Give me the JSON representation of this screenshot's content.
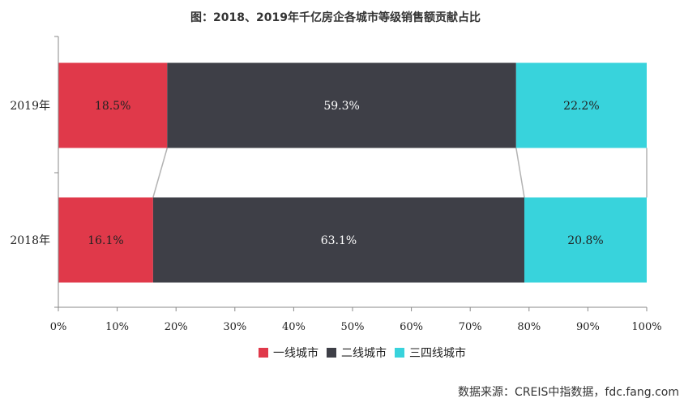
{
  "chart_data": {
    "type": "bar",
    "orientation": "horizontal",
    "stacked": "percent",
    "title": "图：2018、2019年千亿房企各城市等级销售额贡献占比",
    "categories": [
      "2019年",
      "2018年"
    ],
    "series": [
      {
        "name": "一线城市",
        "values": [
          18.5,
          16.1
        ],
        "labels": [
          "18.5%",
          "16.1%"
        ],
        "color": "#e0394a"
      },
      {
        "name": "二线城市",
        "values": [
          59.3,
          63.1
        ],
        "labels": [
          "59.3%",
          "63.1%"
        ],
        "color": "#3e3f47"
      },
      {
        "name": "三四线城市",
        "values": [
          22.2,
          20.8
        ],
        "labels": [
          "22.2%",
          "20.8%"
        ],
        "color": "#38d3dc"
      }
    ],
    "xlim": [
      0,
      100
    ],
    "xticks": [
      "0%",
      "10%",
      "20%",
      "30%",
      "40%",
      "50%",
      "60%",
      "70%",
      "80%",
      "90%",
      "100%"
    ],
    "grid": false,
    "series_lines": true,
    "legend_position": "bottom"
  },
  "source": "数据来源：CREIS中指数据，fdc.fang.com"
}
